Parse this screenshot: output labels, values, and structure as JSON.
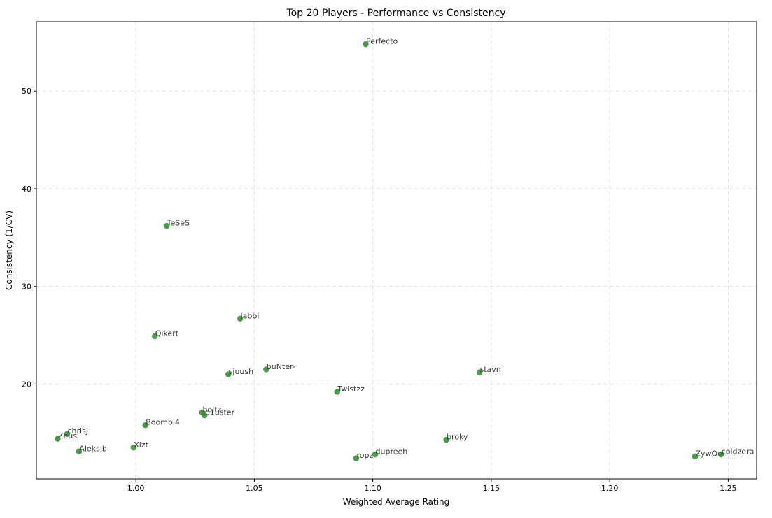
{
  "chart_data": {
    "type": "scatter",
    "title": "Top 20 Players - Performance vs Consistency",
    "xlabel": "Weighted Average Rating",
    "ylabel": "Consistency (1/CV)",
    "xlim": [
      0.958,
      1.262
    ],
    "ylim": [
      10.3,
      57.1
    ],
    "xticks": [
      1.0,
      1.05,
      1.1,
      1.15,
      1.2,
      1.25
    ],
    "xtick_labels": [
      "1.00",
      "1.05",
      "1.10",
      "1.15",
      "1.20",
      "1.25"
    ],
    "yticks": [
      20,
      30,
      40,
      50
    ],
    "ytick_labels": [
      "20",
      "30",
      "40",
      "50"
    ],
    "grid": true,
    "point_color": "#2a8a2a",
    "points": [
      {
        "name": "Perfecto",
        "x": 1.097,
        "y": 54.8
      },
      {
        "name": "TeSeS",
        "x": 1.013,
        "y": 36.2
      },
      {
        "name": "jabbi",
        "x": 1.044,
        "y": 26.7
      },
      {
        "name": "Qikert",
        "x": 1.008,
        "y": 24.9
      },
      {
        "name": "buNter-",
        "x": 1.055,
        "y": 21.5
      },
      {
        "name": "sjuush",
        "x": 1.039,
        "y": 21.0
      },
      {
        "name": "stavn",
        "x": 1.145,
        "y": 21.2
      },
      {
        "name": "Twistzz",
        "x": 1.085,
        "y": 19.2
      },
      {
        "name": "boltz",
        "x": 1.028,
        "y": 17.1
      },
      {
        "name": "b1uster",
        "x": 1.029,
        "y": 16.8
      },
      {
        "name": "Boombl4",
        "x": 1.004,
        "y": 15.8
      },
      {
        "name": "chrisJ",
        "x": 0.971,
        "y": 14.9
      },
      {
        "name": "Zeus",
        "x": 0.967,
        "y": 14.4
      },
      {
        "name": "broky",
        "x": 1.131,
        "y": 14.3
      },
      {
        "name": "Xizt",
        "x": 0.999,
        "y": 13.5
      },
      {
        "name": "Aleksib",
        "x": 0.976,
        "y": 13.1
      },
      {
        "name": "dupreeh",
        "x": 1.101,
        "y": 12.8
      },
      {
        "name": "ropz",
        "x": 1.093,
        "y": 12.4
      },
      {
        "name": "ZywOo",
        "x": 1.236,
        "y": 12.6
      },
      {
        "name": "coldzera",
        "x": 1.247,
        "y": 12.8
      }
    ]
  }
}
